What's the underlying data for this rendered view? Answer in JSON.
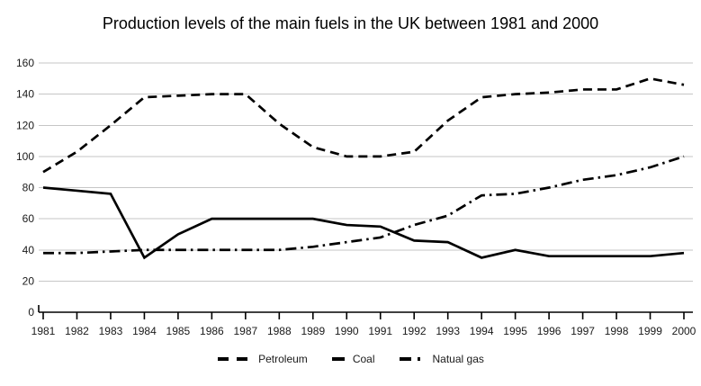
{
  "chart_data": {
    "type": "line",
    "title": "Production levels of the main fuels in the UK between 1981 and 2000",
    "xlabel": "",
    "ylabel": "",
    "x": [
      1981,
      1982,
      1983,
      1984,
      1985,
      1986,
      1987,
      1988,
      1989,
      1990,
      1991,
      1992,
      1993,
      1994,
      1995,
      1996,
      1997,
      1998,
      1999,
      2000
    ],
    "series": [
      {
        "name": "Petroleum",
        "style": "dashed",
        "values": [
          90,
          103,
          120,
          138,
          139,
          140,
          140,
          121,
          106,
          100,
          100,
          103,
          123,
          138,
          140,
          141,
          143,
          143,
          150,
          146
        ]
      },
      {
        "name": "Coal",
        "style": "solid",
        "values": [
          80,
          78,
          76,
          35,
          50,
          60,
          60,
          60,
          60,
          56,
          55,
          46,
          45,
          35,
          40,
          36,
          36,
          36,
          36,
          38
        ]
      },
      {
        "name": "Natual gas",
        "style": "dashdot",
        "values": [
          38,
          38,
          39,
          40,
          40,
          40,
          40,
          40,
          42,
          45,
          48,
          56,
          62,
          75,
          76,
          80,
          85,
          88,
          93,
          100
        ]
      }
    ],
    "ylim": [
      0,
      160
    ],
    "ytick_step": 20,
    "grid": true,
    "legend_position": "bottom",
    "line_color": "#000000",
    "grid_color": "#c6c6c6",
    "axis_color": "#000000"
  }
}
